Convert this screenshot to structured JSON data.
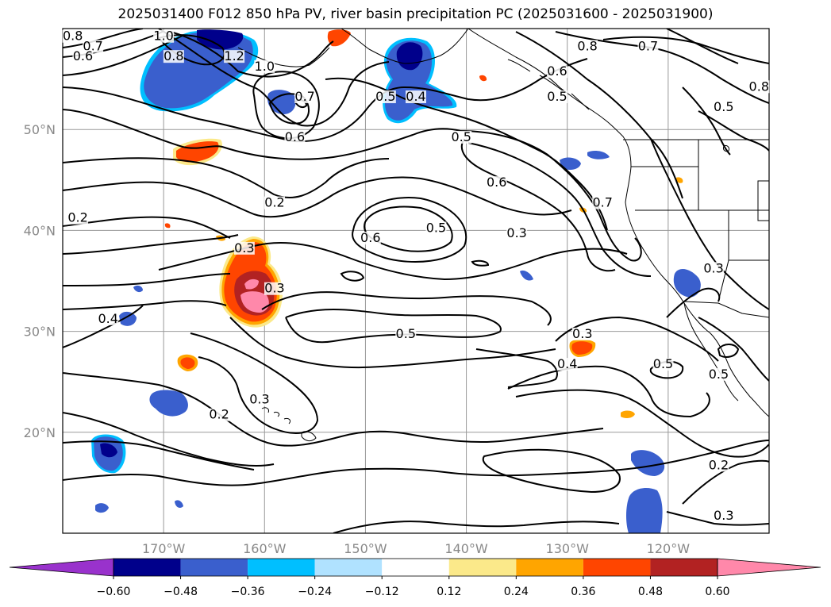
{
  "title": "2025031400 F012 850 hPa PV, river basin precipitation PC (2025031600 - 2025031900)",
  "map": {
    "lon_range": [
      -180,
      -110
    ],
    "lat_range": [
      10,
      60
    ],
    "lon_ticks": [
      {
        "value": -170,
        "label": "170°W"
      },
      {
        "value": -160,
        "label": "160°W"
      },
      {
        "value": -150,
        "label": "150°W"
      },
      {
        "value": -140,
        "label": "140°W"
      },
      {
        "value": -130,
        "label": "130°W"
      },
      {
        "value": -120,
        "label": "120°W"
      }
    ],
    "lat_ticks": [
      {
        "value": 20,
        "label": "20°N"
      },
      {
        "value": 30,
        "label": "30°N"
      },
      {
        "value": 40,
        "label": "40°N"
      },
      {
        "value": 50,
        "label": "50°N"
      }
    ],
    "grid": true
  },
  "colorbar": {
    "levels": [
      "−0.60",
      "−0.48",
      "−0.36",
      "−0.24",
      "−0.12",
      "0.12",
      "0.24",
      "0.36",
      "0.48",
      "0.60"
    ],
    "colors": [
      "#9932cc",
      "#00008b",
      "#3a5fcd",
      "#00bfff",
      "#b0e2ff",
      "#ffffff",
      "#fbe98a",
      "#ffa500",
      "#ff4500",
      "#b22222",
      "#ff88aa"
    ]
  },
  "contour_labels": [
    {
      "text": "0.8",
      "lon": -179,
      "lat": 59
    },
    {
      "text": "0.7",
      "lon": -177,
      "lat": 58
    },
    {
      "text": "0.6",
      "lon": -178,
      "lat": 57
    },
    {
      "text": "1.0",
      "lon": -170,
      "lat": 59
    },
    {
      "text": "0.8",
      "lon": -169,
      "lat": 57
    },
    {
      "text": "1.2",
      "lon": -163,
      "lat": 57
    },
    {
      "text": "1.0",
      "lon": -160,
      "lat": 56
    },
    {
      "text": "0.7",
      "lon": -156,
      "lat": 53
    },
    {
      "text": "0.6",
      "lon": -157,
      "lat": 49
    },
    {
      "text": "0.5",
      "lon": -148,
      "lat": 53
    },
    {
      "text": "0.4",
      "lon": -145,
      "lat": 53
    },
    {
      "text": "0.8",
      "lon": -128,
      "lat": 58
    },
    {
      "text": "0.7",
      "lon": -122,
      "lat": 58
    },
    {
      "text": "0.6",
      "lon": -131,
      "lat": 55.5
    },
    {
      "text": "0.5",
      "lon": -131,
      "lat": 53
    },
    {
      "text": "0.8",
      "lon": -111,
      "lat": 54
    },
    {
      "text": "0.5",
      "lon": -114.5,
      "lat": 52
    },
    {
      "text": "0.5",
      "lon": -140.5,
      "lat": 49
    },
    {
      "text": "0.6",
      "lon": -137,
      "lat": 44.5
    },
    {
      "text": "0.7",
      "lon": -126.5,
      "lat": 42.5
    },
    {
      "text": "0.2",
      "lon": -178.5,
      "lat": 41
    },
    {
      "text": "0.2",
      "lon": -159,
      "lat": 42.5
    },
    {
      "text": "0.3",
      "lon": -162,
      "lat": 38
    },
    {
      "text": "0.6",
      "lon": -149.5,
      "lat": 39
    },
    {
      "text": "0.5",
      "lon": -143,
      "lat": 40
    },
    {
      "text": "0.3",
      "lon": -135,
      "lat": 39.5
    },
    {
      "text": "0.3",
      "lon": -115.5,
      "lat": 36
    },
    {
      "text": "0.3",
      "lon": -159,
      "lat": 34
    },
    {
      "text": "0.4",
      "lon": -175.5,
      "lat": 31
    },
    {
      "text": "0.5",
      "lon": -146,
      "lat": 29.5
    },
    {
      "text": "0.3",
      "lon": -128.5,
      "lat": 29.5
    },
    {
      "text": "0.4",
      "lon": -130,
      "lat": 26.5
    },
    {
      "text": "0.5",
      "lon": -120.5,
      "lat": 26.5
    },
    {
      "text": "0.5",
      "lon": -115,
      "lat": 25.5
    },
    {
      "text": "0.3",
      "lon": -160.5,
      "lat": 23
    },
    {
      "text": "0.2",
      "lon": -164.5,
      "lat": 21.5
    },
    {
      "text": "0.2",
      "lon": -115,
      "lat": 16.5
    },
    {
      "text": "0.3",
      "lon": -114.5,
      "lat": 11.5
    }
  ]
}
